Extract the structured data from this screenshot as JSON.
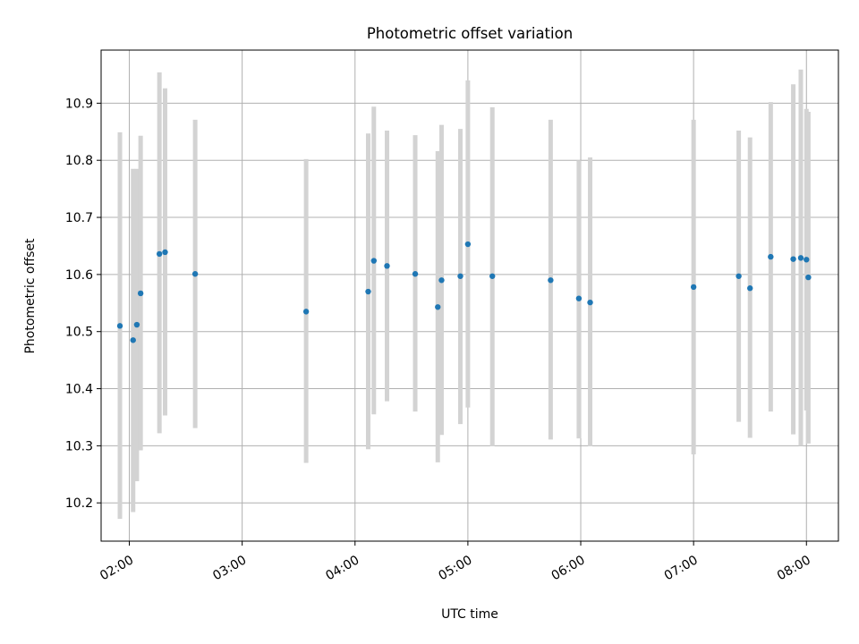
{
  "chart_data": {
    "type": "scatter",
    "title": "Photometric offset variation",
    "xlabel": "UTC time",
    "ylabel": "Photometric offset",
    "x_format": "HH:MM",
    "xlim": [
      "01:45",
      "08:17"
    ],
    "ylim": [
      10.133,
      10.993
    ],
    "x_ticks": [
      "02:00",
      "03:00",
      "04:00",
      "05:00",
      "06:00",
      "07:00",
      "08:00"
    ],
    "y_ticks": [
      10.2,
      10.3,
      10.4,
      10.5,
      10.6,
      10.7,
      10.8,
      10.9
    ],
    "y_tick_labels": [
      "10.2",
      "10.3",
      "10.4",
      "10.5",
      "10.6",
      "10.7",
      "10.8",
      "10.9"
    ],
    "grid": true,
    "series": [
      {
        "marker_color": "#1f77b4",
        "errorbar_color": "#d3d3d3",
        "points": [
          {
            "x": "01:55",
            "y": 10.51,
            "lo": 10.172,
            "hi": 10.849
          },
          {
            "x": "02:02",
            "y": 10.485,
            "lo": 10.184,
            "hi": 10.785
          },
          {
            "x": "02:04",
            "y": 10.512,
            "lo": 10.238,
            "hi": 10.785
          },
          {
            "x": "02:06",
            "y": 10.567,
            "lo": 10.292,
            "hi": 10.843
          },
          {
            "x": "02:16",
            "y": 10.636,
            "lo": 10.322,
            "hi": 10.954
          },
          {
            "x": "02:19",
            "y": 10.639,
            "lo": 10.353,
            "hi": 10.926
          },
          {
            "x": "02:35",
            "y": 10.601,
            "lo": 10.331,
            "hi": 10.871
          },
          {
            "x": "03:34",
            "y": 10.535,
            "lo": 10.27,
            "hi": 10.802
          },
          {
            "x": "04:07",
            "y": 10.57,
            "lo": 10.294,
            "hi": 10.847
          },
          {
            "x": "04:10",
            "y": 10.624,
            "lo": 10.355,
            "hi": 10.894
          },
          {
            "x": "04:17",
            "y": 10.615,
            "lo": 10.378,
            "hi": 10.852
          },
          {
            "x": "04:32",
            "y": 10.601,
            "lo": 10.36,
            "hi": 10.844
          },
          {
            "x": "04:44",
            "y": 10.543,
            "lo": 10.271,
            "hi": 10.816
          },
          {
            "x": "04:46",
            "y": 10.59,
            "lo": 10.319,
            "hi": 10.862
          },
          {
            "x": "04:56",
            "y": 10.597,
            "lo": 10.338,
            "hi": 10.855
          },
          {
            "x": "05:00",
            "y": 10.653,
            "lo": 10.367,
            "hi": 10.94
          },
          {
            "x": "05:13",
            "y": 10.597,
            "lo": 10.299,
            "hi": 10.893
          },
          {
            "x": "05:44",
            "y": 10.59,
            "lo": 10.311,
            "hi": 10.871
          },
          {
            "x": "05:59",
            "y": 10.558,
            "lo": 10.313,
            "hi": 10.8
          },
          {
            "x": "06:05",
            "y": 10.551,
            "lo": 10.299,
            "hi": 10.805
          },
          {
            "x": "07:00",
            "y": 10.578,
            "lo": 10.285,
            "hi": 10.871
          },
          {
            "x": "07:24",
            "y": 10.597,
            "lo": 10.342,
            "hi": 10.852
          },
          {
            "x": "07:30",
            "y": 10.576,
            "lo": 10.314,
            "hi": 10.84
          },
          {
            "x": "07:41",
            "y": 10.631,
            "lo": 10.36,
            "hi": 10.902
          },
          {
            "x": "07:53",
            "y": 10.627,
            "lo": 10.32,
            "hi": 10.933
          },
          {
            "x": "07:57",
            "y": 10.629,
            "lo": 10.3,
            "hi": 10.959
          },
          {
            "x": "08:00",
            "y": 10.626,
            "lo": 10.362,
            "hi": 10.89
          },
          {
            "x": "08:01",
            "y": 10.595,
            "lo": 10.304,
            "hi": 10.885
          }
        ]
      }
    ]
  }
}
